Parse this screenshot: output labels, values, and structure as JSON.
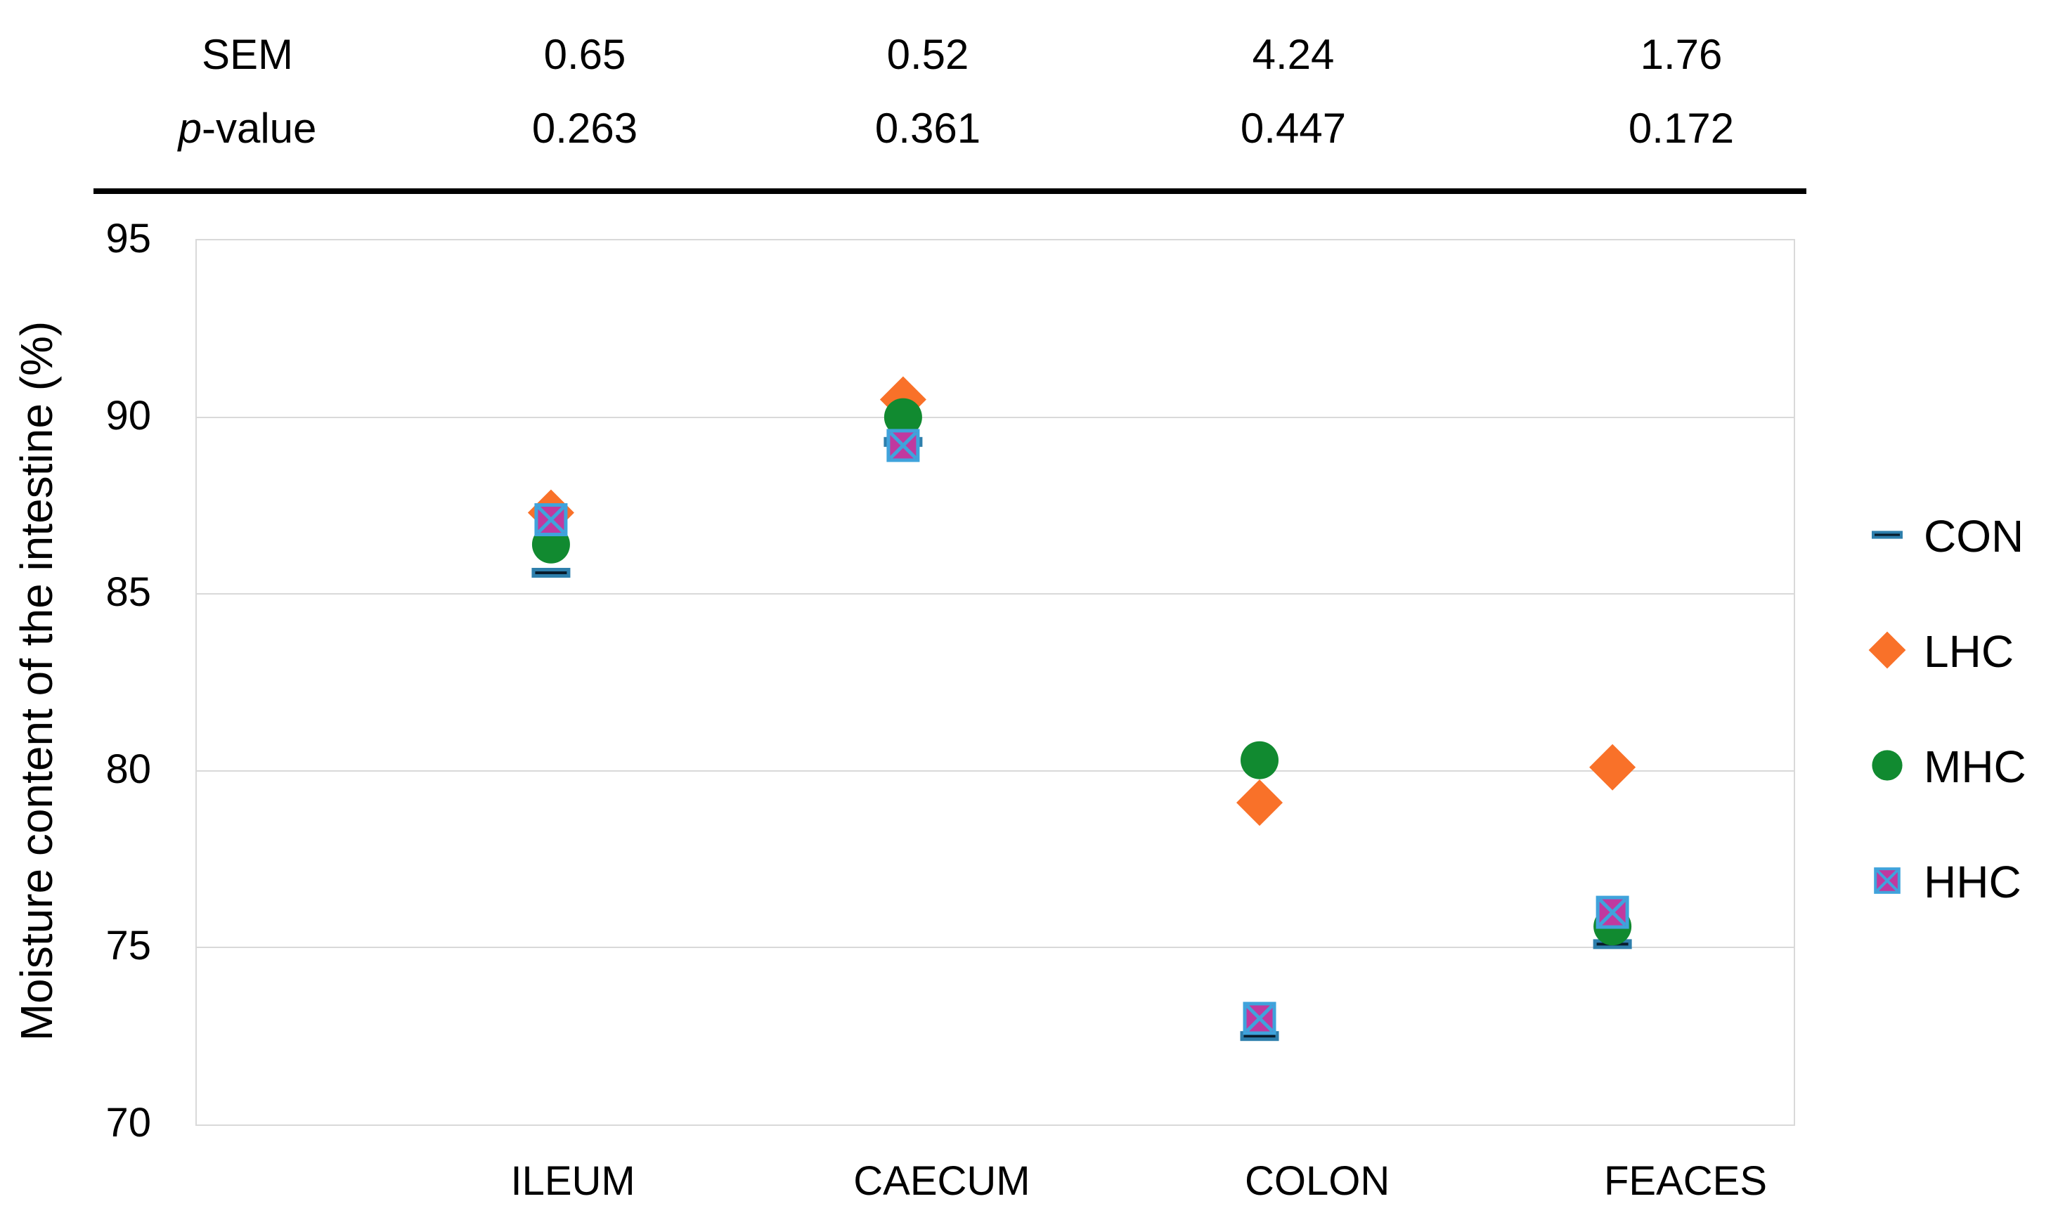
{
  "stats_table": {
    "rows": [
      {
        "label": "SEM",
        "label_italic": "",
        "label_rest": "SEM",
        "values": [
          "0.65",
          "0.52",
          "4.24",
          "1.76"
        ]
      },
      {
        "label": "p-value",
        "label_italic": "p",
        "label_rest": "-value",
        "values": [
          "0.263",
          "0.361",
          "0.447",
          "0.172"
        ]
      }
    ]
  },
  "chart_data": {
    "type": "scatter",
    "categories": [
      "ILEUM",
      "CAECUM",
      "COLON",
      "FEACES"
    ],
    "series": [
      {
        "name": "CON",
        "marker": "dash",
        "color": "#081c2c",
        "accent": "#2e7fac",
        "values": [
          85.6,
          89.3,
          72.5,
          75.1
        ]
      },
      {
        "name": "LHC",
        "marker": "diamond",
        "color": "#f97129",
        "accent": "#f97129",
        "values": [
          87.3,
          90.5,
          79.1,
          80.1
        ]
      },
      {
        "name": "MHC",
        "marker": "circle",
        "color": "#118a30",
        "accent": "#118a30",
        "values": [
          86.4,
          90.0,
          80.3,
          75.6
        ]
      },
      {
        "name": "HHC",
        "marker": "square-x",
        "color": "#c0399f",
        "accent": "#3fa3dc",
        "values": [
          87.1,
          89.2,
          73.0,
          76.0
        ]
      }
    ],
    "title": "",
    "xlabel": "",
    "ylabel": "Moisture content of the intestine (%)",
    "ylim": [
      70,
      95
    ],
    "yticks": [
      95,
      90,
      85,
      80,
      75,
      70
    ],
    "grid": true,
    "legend_position": "right",
    "gridline_color": "#d9d9d9"
  }
}
